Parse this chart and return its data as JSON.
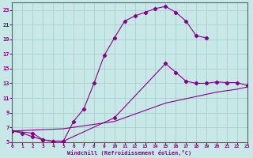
{
  "xlabel": "Windchill (Refroidissement éolien,°C)",
  "bg_color": "#c8e8e8",
  "grid_color": "#a8d0d0",
  "line_color": "#880088",
  "spine_color": "#606060",
  "xlim": [
    0,
    23
  ],
  "ylim": [
    5,
    24
  ],
  "xticks": [
    0,
    1,
    2,
    3,
    4,
    5,
    6,
    7,
    8,
    9,
    10,
    11,
    12,
    13,
    14,
    15,
    16,
    17,
    18,
    19,
    20,
    21,
    22,
    23
  ],
  "yticks": [
    5,
    7,
    9,
    11,
    13,
    15,
    17,
    19,
    21,
    23
  ],
  "curve1_x": [
    0,
    1,
    2,
    3,
    4,
    5,
    6,
    7,
    8,
    9,
    10,
    11,
    12,
    13,
    14,
    15,
    16,
    17,
    18,
    19
  ],
  "curve1_y": [
    6.5,
    6.2,
    5.7,
    5.3,
    5.1,
    5.1,
    7.8,
    9.5,
    13.0,
    16.8,
    19.2,
    21.5,
    22.2,
    22.7,
    23.2,
    23.5,
    22.7,
    21.5,
    19.5,
    19.2
  ],
  "curve2_x": [
    0,
    2,
    3,
    4,
    5,
    10,
    15,
    16,
    17,
    18,
    19,
    20,
    21,
    22,
    23
  ],
  "curve2_y": [
    6.5,
    6.2,
    5.3,
    5.1,
    5.1,
    8.3,
    15.7,
    14.5,
    13.3,
    13.0,
    13.0,
    13.2,
    13.1,
    13.1,
    12.7
  ],
  "curve3_x": [
    0,
    5,
    10,
    15,
    20,
    21,
    22,
    23
  ],
  "curve3_y": [
    6.5,
    6.8,
    7.8,
    10.3,
    11.8,
    12.0,
    12.2,
    12.5
  ]
}
